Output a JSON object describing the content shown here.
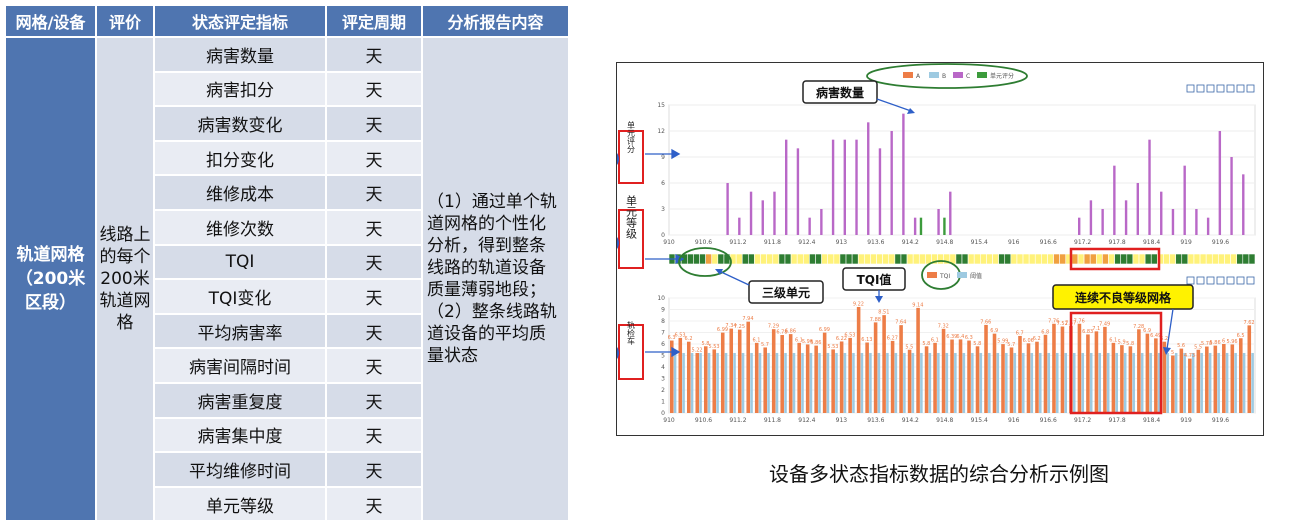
{
  "table": {
    "headers": [
      "网格/设备",
      "评价",
      "状态评定指标",
      "评定周期",
      "分析报告内容"
    ],
    "grid_label": [
      "轨道网格",
      "（200米",
      "区段）"
    ],
    "evaluation": [
      "线路上",
      "的每个",
      "200米",
      "轨道网",
      "格"
    ],
    "indicators": [
      "病害数量",
      "病害扣分",
      "病害数变化",
      "扣分变化",
      "维修成本",
      "维修次数",
      "TQI",
      "TQI变化",
      "平均病害率",
      "病害间隔时间",
      "病害重复度",
      "病害集中度",
      "平均维修时间",
      "单元等级"
    ],
    "period": "天",
    "report": [
      "（1）通过单个轨",
      "道网格的个性化",
      "分析，得到整条",
      "线路的轨道设备",
      "质量薄弱地段；",
      "（2）整条线路轨",
      "道设备的平均质",
      "量状态"
    ]
  },
  "figure": {
    "caption": "设备多状态指标数据的综合分析示例图",
    "markers": [
      "1",
      "2",
      "3"
    ],
    "side_labels": {
      "unit_score": "单元评分",
      "unit_grade": "单元等级",
      "track": "轨检车"
    },
    "callouts": {
      "defect_count": "病害数量",
      "level3": "三级单元",
      "tqi_value": "TQI值",
      "consecutive_bad": "连续不良等级网格"
    },
    "toolbar_icons": [
      "crop-icon",
      "zoom-icon",
      "save-icon",
      "refresh-icon",
      "line-chart-icon",
      "bar-chart-icon",
      "list-icon"
    ],
    "colors": {
      "A": "#ed7d47",
      "B": "#9ecae1",
      "C": "#b968c7",
      "unit_score": "#3c9b3c",
      "annotation_red": "#e02020",
      "callout_yellow": "#fff200",
      "marker_blue": "#2e5fc8",
      "grade_green": "#2e7d32",
      "grade_yellow": "#fff27a",
      "grade_orange": "#f0a040"
    }
  },
  "chart_data": [
    {
      "type": "bar",
      "legend": [
        "A",
        "B",
        "C",
        "单元评分"
      ],
      "x_ticks": [
        "910",
        "910.6",
        "911.2",
        "911.8",
        "912.4",
        "913",
        "913.6",
        "914.2",
        "914.8",
        "915.4",
        "916",
        "916.6",
        "917.2",
        "917.8",
        "918.4",
        "919",
        "919.6"
      ],
      "xlim": [
        910,
        920
      ],
      "ylim": [
        0,
        15
      ],
      "y_ticks": [
        0,
        3,
        6,
        9,
        12,
        15
      ],
      "series": [
        {
          "name": "C",
          "x": [
            911.0,
            911.2,
            911.4,
            911.6,
            911.8,
            912.0,
            912.2,
            912.4,
            912.6,
            912.8,
            913.0,
            913.2,
            913.4,
            913.6,
            913.8,
            914.0,
            914.2,
            914.6,
            914.8,
            917.0,
            917.2,
            917.4,
            917.6,
            917.8,
            918.0,
            918.2,
            918.4,
            918.6,
            918.8,
            919.0,
            919.2,
            919.4,
            919.6,
            919.8
          ],
          "values": [
            6,
            2,
            5,
            4,
            5,
            11,
            10,
            2,
            3,
            11,
            11,
            11,
            13,
            10,
            12,
            14,
            2,
            3,
            5,
            2,
            4,
            3,
            8,
            4,
            6,
            11,
            5,
            3,
            8,
            3,
            2,
            12,
            9,
            7
          ]
        },
        {
          "name": "单元评分",
          "x": [
            914.3,
            914.7
          ],
          "values": [
            2,
            2
          ]
        }
      ]
    },
    {
      "type": "heatmap",
      "label": "单元等级",
      "x_ticks": [
        "910",
        "910.6",
        "911.2",
        "911.8",
        "912.4",
        "913",
        "913.6",
        "914.2",
        "914.8",
        "915.4",
        "916",
        "916.6",
        "917.2",
        "917.8",
        "918.4",
        "919",
        "919.6"
      ],
      "cells": "ggggggoyggyyggyyyyggyyyggyyygggyyyyyyggyyyyyyyyggyyyyyggyyyyyyyooyoyooyoygggyyggyyyggyyyyyyyyggg"
    },
    {
      "type": "bar",
      "legend": [
        "TQI",
        "阈值"
      ],
      "x_ticks": [
        "910",
        "910.6",
        "911.2",
        "911.8",
        "912.4",
        "913",
        "913.6",
        "914.2",
        "914.8",
        "915.4",
        "916",
        "916.6",
        "917.2",
        "917.8",
        "918.4",
        "919",
        "919.6"
      ],
      "xlim": [
        910,
        920
      ],
      "ylim": [
        0,
        10
      ],
      "y_ticks": [
        0,
        1,
        2,
        3,
        4,
        5,
        6,
        7,
        8,
        9,
        10
      ],
      "series": [
        {
          "name": "TQI",
          "values": [
            6.3,
            6.53,
            6.2,
            5.22,
            5.8,
            5.53,
            6.99,
            7.34,
            7.25,
            7.94,
            6.1,
            5.7,
            7.29,
            6.78,
            6.86,
            6.1,
            5.96,
            5.86,
            6.99,
            5.53,
            6.22,
            6.53,
            9.22,
            6.13,
            7.88,
            8.51,
            6.27,
            7.64,
            5.5,
            9.14,
            5.8,
            6.1,
            7.32,
            6.39,
            6.4,
            6.3,
            5.8,
            7.66,
            6.9,
            5.99,
            5.7,
            6.7,
            6.06,
            6.2,
            6.8,
            7.76,
            7.52,
            7.57,
            7.76,
            6.83,
            7.1,
            7.49,
            6.1,
            5.9,
            5.8,
            7.28,
            6.9,
            6.49,
            6.2,
            5.0,
            5.6,
            4.73,
            5.5,
            5.78,
            5.86,
            6.0,
            5.96,
            6.5,
            7.62
          ],
          "threshold": 5.22
        }
      ]
    }
  ]
}
